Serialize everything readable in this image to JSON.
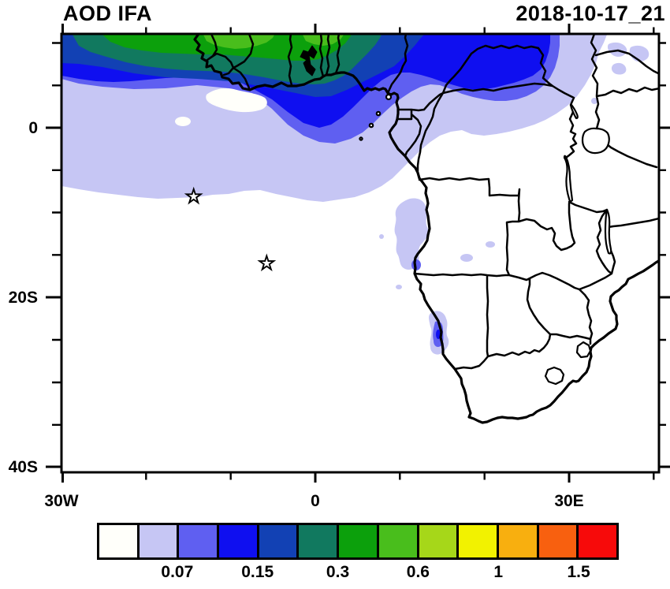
{
  "header": {
    "title": "AOD IFA",
    "datetime": "2018-10-17_21"
  },
  "axes": {
    "y_ticks": [
      {
        "label": "0"
      },
      {
        "label": "20S"
      },
      {
        "label": "40S"
      }
    ],
    "x_ticks": [
      {
        "label": "30W"
      },
      {
        "label": "0"
      },
      {
        "label": "30E"
      }
    ]
  },
  "colorbar": {
    "labels": [
      "0.07",
      "0.15",
      "0.3",
      "0.6",
      "1",
      "1.5"
    ],
    "colors": [
      "#FFFFFA",
      "#C6C6F4",
      "#5F5FF1",
      "#0F0FF0",
      "#1241B4",
      "#11795F",
      "#0CA00C",
      "#49BE1C",
      "#A6D719",
      "#F2F200",
      "#F8AF0F",
      "#F8600F",
      "#F70A0A"
    ]
  },
  "chart_data": {
    "type": "heatmap",
    "subtype": "filled-contour geographic map",
    "title": "AOD IFA",
    "datetime": "2018-10-17_21",
    "variable": "AOD (aerosol optical depth)",
    "region": "Africa and tropical/south Atlantic",
    "x_axis": {
      "tick_labels": [
        "30W",
        "0",
        "30E"
      ],
      "minor_tick_interval_deg": 10,
      "approx_lon_range": [
        -30,
        40.5
      ]
    },
    "y_axis": {
      "tick_labels": [
        "0",
        "20S",
        "40S"
      ],
      "minor_tick_interval_deg": 5,
      "approx_lat_range": [
        11.1,
        -40.7
      ]
    },
    "colorbar_labeled_levels": [
      0.07,
      0.15,
      0.3,
      0.6,
      1,
      1.5
    ],
    "colorbar_estimated_all_levels": [
      0.05,
      0.07,
      0.1,
      0.15,
      0.2,
      0.3,
      0.4,
      0.6,
      0.8,
      1,
      1.2,
      1.5
    ],
    "colorbar_colors": [
      "#FFFFFA",
      "#C6C6F4",
      "#5F5FF1",
      "#0F0FF0",
      "#1241B4",
      "#11795F",
      "#0CA00C",
      "#49BE1C",
      "#A6D719",
      "#F2F200",
      "#F8AF0F",
      "#F8600F",
      "#F70A0A"
    ],
    "max_shaded_value_visible": "0.4-0.6 (small bright green patches near 10-11N over West Africa)",
    "shaded_regions": [
      {
        "area": "West Africa / Gulf of Guinea band, 30W-15E along 0-11N",
        "aod": "0.05-0.6, increasing northward: white->periwinkle->blue->navy->teal->green toward 11N"
      },
      {
        "area": "Central Africa blob ~12-28E, 4-11N (Cameroon/Chad/CAR)",
        "aod": "0.1-0.15 bright blue core with 0.05-0.1 fringe"
      },
      {
        "area": "East Africa ~34-40E, 4-10N",
        "aod": "scattered 0.05-0.07 patches"
      },
      {
        "area": "Angola coast ~9-16S",
        "aod": "0.05-0.1 coastal patches"
      },
      {
        "area": "Namibia coast ~21-25S",
        "aod": "0.05-0.15 small coastal patches"
      }
    ],
    "markers": [
      {
        "shape": "open star",
        "approx_lon": -14.4,
        "approx_lat": -8.1
      },
      {
        "shape": "open star",
        "approx_lon": -5.7,
        "approx_lat": -16.0
      }
    ]
  }
}
